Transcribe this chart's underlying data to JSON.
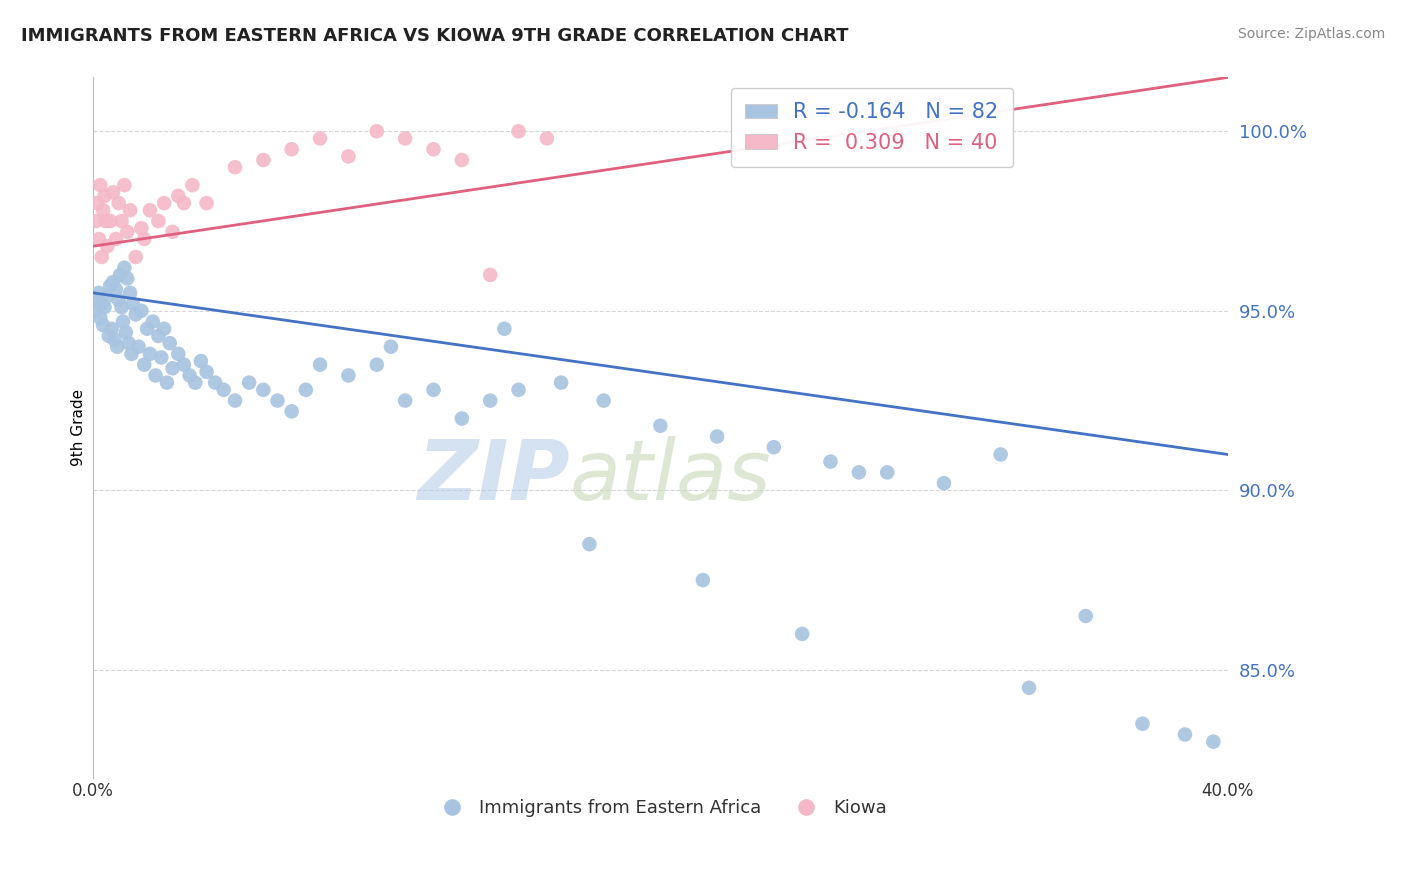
{
  "title": "IMMIGRANTS FROM EASTERN AFRICA VS KIOWA 9TH GRADE CORRELATION CHART",
  "source": "Source: ZipAtlas.com",
  "ylabel": "9th Grade",
  "xlim": [
    0.0,
    40.0
  ],
  "ylim": [
    82.0,
    101.5
  ],
  "yticks": [
    85.0,
    90.0,
    95.0,
    100.0
  ],
  "ytick_labels": [
    "85.0%",
    "90.0%",
    "95.0%",
    "100.0%"
  ],
  "xtick_labels": [
    "0.0%",
    "40.0%"
  ],
  "legend_blue_label": "Immigrants from Eastern Africa",
  "legend_pink_label": "Kiowa",
  "R_blue": -0.164,
  "N_blue": 82,
  "R_pink": 0.309,
  "N_pink": 40,
  "blue_color": "#a8c4e0",
  "blue_line_color": "#4472c4",
  "pink_color": "#f4b8c8",
  "pink_line_color": "#e06080",
  "watermark_zip": "ZIP",
  "watermark_atlas": "atlas",
  "watermark_color_zip": "#b8cfe8",
  "watermark_color_atlas": "#c8d8b8",
  "blue_scatter_x": [
    0.1,
    0.15,
    0.2,
    0.25,
    0.3,
    0.35,
    0.4,
    0.5,
    0.55,
    0.6,
    0.65,
    0.7,
    0.75,
    0.8,
    0.85,
    0.9,
    0.95,
    1.0,
    1.05,
    1.1,
    1.15,
    1.2,
    1.25,
    1.3,
    1.35,
    1.4,
    1.5,
    1.6,
    1.7,
    1.8,
    1.9,
    2.0,
    2.1,
    2.2,
    2.3,
    2.4,
    2.5,
    2.6,
    2.7,
    2.8,
    3.0,
    3.2,
    3.4,
    3.6,
    3.8,
    4.0,
    4.3,
    4.6,
    5.0,
    5.5,
    6.0,
    6.5,
    7.0,
    7.5,
    8.0,
    9.0,
    10.0,
    11.0,
    12.0,
    13.0,
    14.0,
    15.0,
    16.5,
    18.0,
    20.0,
    22.0,
    24.0,
    26.0,
    28.0,
    30.0,
    32.0,
    35.0,
    37.0,
    38.5,
    39.5,
    14.5,
    17.5,
    21.5,
    25.0,
    33.0,
    10.5,
    27.0
  ],
  "blue_scatter_y": [
    95.0,
    95.3,
    95.5,
    94.8,
    95.2,
    94.6,
    95.1,
    95.4,
    94.3,
    95.7,
    94.5,
    95.8,
    94.2,
    95.6,
    94.0,
    95.3,
    96.0,
    95.1,
    94.7,
    96.2,
    94.4,
    95.9,
    94.1,
    95.5,
    93.8,
    95.2,
    94.9,
    94.0,
    95.0,
    93.5,
    94.5,
    93.8,
    94.7,
    93.2,
    94.3,
    93.7,
    94.5,
    93.0,
    94.1,
    93.4,
    93.8,
    93.5,
    93.2,
    93.0,
    93.6,
    93.3,
    93.0,
    92.8,
    92.5,
    93.0,
    92.8,
    92.5,
    92.2,
    92.8,
    93.5,
    93.2,
    93.5,
    92.5,
    92.8,
    92.0,
    92.5,
    92.8,
    93.0,
    92.5,
    91.8,
    91.5,
    91.2,
    90.8,
    90.5,
    90.2,
    91.0,
    86.5,
    83.5,
    83.2,
    83.0,
    94.5,
    88.5,
    87.5,
    86.0,
    84.5,
    94.0,
    90.5
  ],
  "pink_scatter_x": [
    0.1,
    0.15,
    0.2,
    0.25,
    0.3,
    0.35,
    0.4,
    0.5,
    0.6,
    0.7,
    0.8,
    0.9,
    1.0,
    1.1,
    1.2,
    1.3,
    1.5,
    1.7,
    2.0,
    2.3,
    2.5,
    2.8,
    3.0,
    3.5,
    4.0,
    5.0,
    6.0,
    7.0,
    8.0,
    9.0,
    10.0,
    11.0,
    12.0,
    13.0,
    14.0,
    15.0,
    16.0,
    0.45,
    1.8,
    3.2
  ],
  "pink_scatter_y": [
    97.5,
    98.0,
    97.0,
    98.5,
    96.5,
    97.8,
    98.2,
    96.8,
    97.5,
    98.3,
    97.0,
    98.0,
    97.5,
    98.5,
    97.2,
    97.8,
    96.5,
    97.3,
    97.8,
    97.5,
    98.0,
    97.2,
    98.2,
    98.5,
    98.0,
    99.0,
    99.2,
    99.5,
    99.8,
    99.3,
    100.0,
    99.8,
    99.5,
    99.2,
    96.0,
    100.0,
    99.8,
    97.5,
    97.0,
    98.0
  ],
  "blue_line_x": [
    0.0,
    40.0
  ],
  "blue_line_y": [
    95.5,
    91.0
  ],
  "pink_line_x": [
    0.0,
    40.0
  ],
  "pink_line_y": [
    96.8,
    101.5
  ]
}
